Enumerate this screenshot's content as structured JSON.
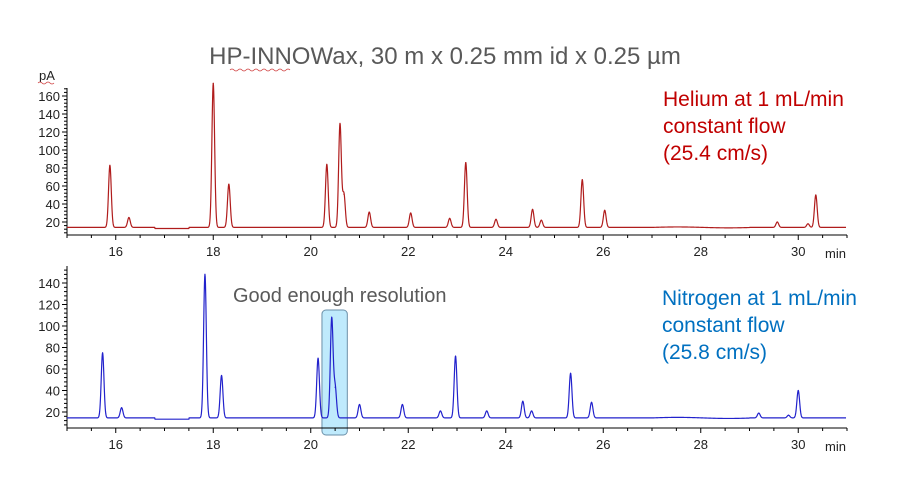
{
  "title": "HP-INNOWax, 30 m x 0.25 mm id x 0.25 µm",
  "chart_data": [
    {
      "type": "line",
      "name": "helium-chromatogram",
      "ylabel": "pA",
      "xlabel": "min",
      "xlim": [
        15,
        31
      ],
      "ylim": [
        11,
        182
      ],
      "baseline": 14,
      "xticks": [
        16,
        18,
        20,
        22,
        24,
        26,
        28,
        30
      ],
      "yticks": [
        20,
        40,
        60,
        80,
        100,
        120,
        140,
        160
      ],
      "color": "#b01c1c",
      "label_lines": [
        "Helium at 1 mL/min",
        "constant flow",
        "(25.4 cm/s)"
      ],
      "label_color": "#c00000",
      "peaks": [
        {
          "rt": 15.88,
          "height": 83
        },
        {
          "rt": 16.27,
          "height": 25
        },
        {
          "rt": 18.0,
          "height": 174
        },
        {
          "rt": 18.32,
          "height": 62
        },
        {
          "rt": 20.33,
          "height": 84
        },
        {
          "rt": 20.6,
          "height": 129
        },
        {
          "rt": 20.68,
          "height": 51
        },
        {
          "rt": 21.2,
          "height": 31
        },
        {
          "rt": 22.05,
          "height": 30
        },
        {
          "rt": 22.85,
          "height": 24
        },
        {
          "rt": 23.18,
          "height": 86
        },
        {
          "rt": 23.8,
          "height": 23
        },
        {
          "rt": 24.55,
          "height": 34
        },
        {
          "rt": 24.73,
          "height": 22
        },
        {
          "rt": 25.57,
          "height": 67
        },
        {
          "rt": 26.03,
          "height": 33
        },
        {
          "rt": 29.57,
          "height": 20
        },
        {
          "rt": 30.2,
          "height": 18
        },
        {
          "rt": 30.36,
          "height": 50
        }
      ]
    },
    {
      "type": "line",
      "name": "nitrogen-chromatogram",
      "ylabel": "",
      "xlabel": "min",
      "xlim": [
        15,
        31
      ],
      "ylim": [
        6,
        152
      ],
      "baseline": 14.5,
      "xticks": [
        16,
        18,
        20,
        22,
        24,
        26,
        28,
        30
      ],
      "yticks": [
        20,
        40,
        60,
        80,
        100,
        120,
        140
      ],
      "color": "#2222cc",
      "label_lines": [
        "Nitrogen at 1 mL/min",
        "constant flow",
        "(25.8 cm/s)"
      ],
      "label_color": "#0070c0",
      "annotation": {
        "text": "Good enough resolution",
        "highlight_range_min": [
          20.23,
          20.75
        ],
        "highlight_fill": "#bfeafc",
        "highlight_stroke": "#6a8fa8"
      },
      "peaks": [
        {
          "rt": 15.73,
          "height": 75
        },
        {
          "rt": 16.12,
          "height": 24
        },
        {
          "rt": 17.83,
          "height": 148
        },
        {
          "rt": 18.17,
          "height": 54
        },
        {
          "rt": 20.15,
          "height": 70
        },
        {
          "rt": 20.43,
          "height": 107
        },
        {
          "rt": 20.5,
          "height": 43
        },
        {
          "rt": 21.0,
          "height": 27
        },
        {
          "rt": 21.88,
          "height": 27
        },
        {
          "rt": 22.66,
          "height": 21
        },
        {
          "rt": 22.97,
          "height": 72
        },
        {
          "rt": 23.61,
          "height": 21
        },
        {
          "rt": 24.35,
          "height": 30
        },
        {
          "rt": 24.53,
          "height": 21
        },
        {
          "rt": 25.33,
          "height": 56
        },
        {
          "rt": 25.76,
          "height": 29
        },
        {
          "rt": 29.19,
          "height": 19
        },
        {
          "rt": 29.8,
          "height": 17
        },
        {
          "rt": 30.0,
          "height": 40
        }
      ]
    }
  ]
}
